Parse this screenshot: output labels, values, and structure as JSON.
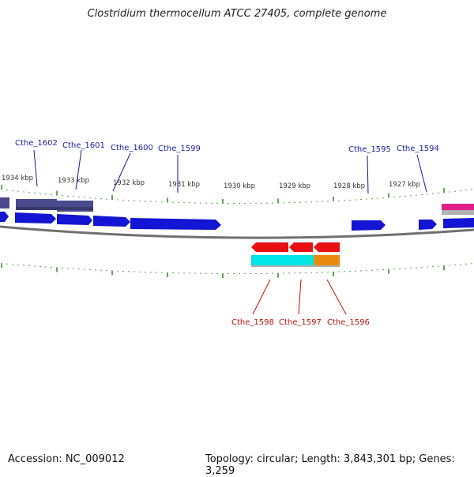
{
  "title": "Clostridium thermocellum ATCC 27405, complete genome",
  "footer": {
    "accession": "Accession: NC_009012",
    "summary": "Topology: circular; Length: 3,843,301 bp; Genes: 3,259"
  },
  "colors": {
    "forward_cds": "#1414d4",
    "reverse_cds": "#e81010",
    "forward_gene": "#4a4a8c",
    "reverse_gene_a": "#00e6e6",
    "reverse_gene_b": "#e88a10",
    "misc_feature": "#e0208a",
    "tick": "#2a8a1a",
    "forward_label": "#1a1aa0",
    "reverse_label": "#c01010",
    "backbone": "#707070"
  },
  "scale_labels": [
    "1934 kbp",
    "1933 kbp",
    "1932 kbp",
    "1931 kbp",
    "1930 kbp",
    "1929 kbp",
    "1928 kbp",
    "1927 kbp"
  ],
  "forward_genes": [
    "Cthe_1602",
    "Cthe_1601",
    "Cthe_1600",
    "Cthe_1599",
    "Cthe_1595",
    "Cthe_1594"
  ],
  "reverse_genes": [
    "Cthe_1598",
    "Cthe_1597",
    "Cthe_1596"
  ]
}
